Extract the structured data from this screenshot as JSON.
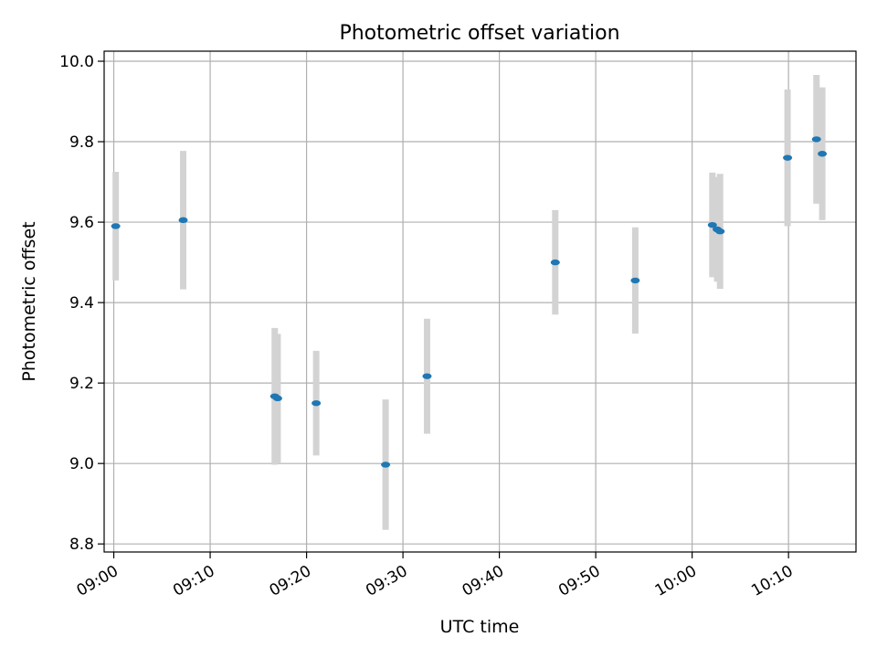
{
  "chart_data": {
    "type": "scatter",
    "title": "Photometric offset variation",
    "xlabel": "UTC time",
    "ylabel": "Photometric offset",
    "x_unit": "UTC time (HH:MM)",
    "xlim": [
      "08:59:00",
      "10:17:00"
    ],
    "ylim": [
      8.78,
      10.025
    ],
    "x_ticks": [
      "09:00",
      "09:10",
      "09:20",
      "09:30",
      "09:40",
      "09:50",
      "10:00",
      "10:10"
    ],
    "y_ticks": [
      "8.8",
      "9.0",
      "9.2",
      "9.4",
      "9.6",
      "9.8",
      "10.0"
    ],
    "grid": true,
    "legend": "none",
    "errorbar_color": "#d3d3d3",
    "marker_color": "#1f77b4",
    "series": [
      {
        "points": [
          {
            "x": "09:00:12",
            "y": 9.59,
            "yerr": 0.135
          },
          {
            "x": "09:07:12",
            "y": 9.605,
            "yerr": 0.172
          },
          {
            "x": "09:16:42",
            "y": 9.167,
            "yerr": 0.17
          },
          {
            "x": "09:17:00",
            "y": 9.162,
            "yerr": 0.16
          },
          {
            "x": "09:21:00",
            "y": 9.15,
            "yerr": 0.13
          },
          {
            "x": "09:28:12",
            "y": 8.997,
            "yerr": 0.162
          },
          {
            "x": "09:32:30",
            "y": 9.217,
            "yerr": 0.143
          },
          {
            "x": "09:45:48",
            "y": 9.5,
            "yerr": 0.13
          },
          {
            "x": "09:54:06",
            "y": 9.455,
            "yerr": 0.132
          },
          {
            "x": "10:02:06",
            "y": 9.593,
            "yerr": 0.13
          },
          {
            "x": "10:02:36",
            "y": 9.582,
            "yerr": 0.13
          },
          {
            "x": "10:02:54",
            "y": 9.577,
            "yerr": 0.143
          },
          {
            "x": "10:09:54",
            "y": 9.76,
            "yerr": 0.17
          },
          {
            "x": "10:12:54",
            "y": 9.806,
            "yerr": 0.16
          },
          {
            "x": "10:13:30",
            "y": 9.77,
            "yerr": 0.165
          }
        ]
      }
    ]
  }
}
